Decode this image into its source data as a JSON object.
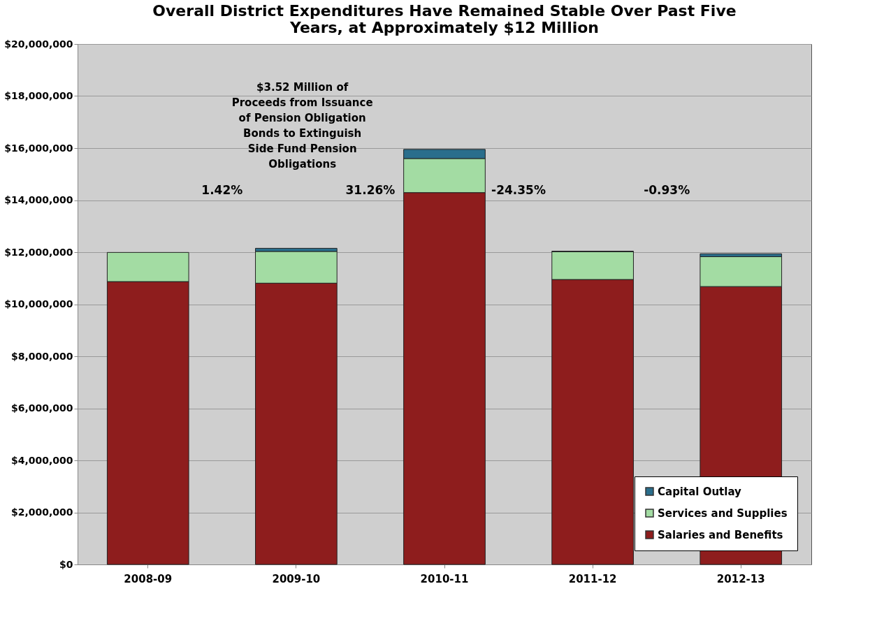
{
  "chart_data": {
    "type": "bar",
    "title": "Overall District Expenditures Have Remained Stable Over Past Five Years, at Approximately $12 Million",
    "categories": [
      "2008-09",
      "2009-10",
      "2010-11",
      "2011-12",
      "2012-13"
    ],
    "stacked": true,
    "series": [
      {
        "name": "Salaries and Benefits",
        "color": "#8e1d1d",
        "values": [
          10870000,
          10810000,
          14290000,
          10950000,
          10680000
        ]
      },
      {
        "name": "Services and Supplies",
        "color": "#a3dca3",
        "values": [
          1120000,
          1220000,
          1310000,
          1070000,
          1150000
        ]
      },
      {
        "name": "Capital Outlay",
        "color": "#2a6e8c",
        "values": [
          0,
          120000,
          350000,
          20000,
          110000
        ]
      }
    ],
    "ylim": [
      0,
      20000000
    ],
    "yticks": [
      {
        "value": 0,
        "label": "$0"
      },
      {
        "value": 2000000,
        "label": "$2,000,000"
      },
      {
        "value": 4000000,
        "label": "$4,000,000"
      },
      {
        "value": 6000000,
        "label": "$6,000,000"
      },
      {
        "value": 8000000,
        "label": "$8,000,000"
      },
      {
        "value": 10000000,
        "label": "$10,000,000"
      },
      {
        "value": 12000000,
        "label": "$12,000,000"
      },
      {
        "value": 14000000,
        "label": "$14,000,000"
      },
      {
        "value": 16000000,
        "label": "$16,000,000"
      },
      {
        "value": 18000000,
        "label": "$18,000,000"
      },
      {
        "value": 20000000,
        "label": "$20,000,000"
      }
    ],
    "grid": "y",
    "legend": "bottom right",
    "annotations": [
      "1.42%",
      "31.26%",
      "-24.35%",
      "-0.93%",
      "$3.52 Million of Proceeds from Issuance of Pension Obligation Bonds to Extinguish Side Fund Pension Obligations"
    ]
  }
}
